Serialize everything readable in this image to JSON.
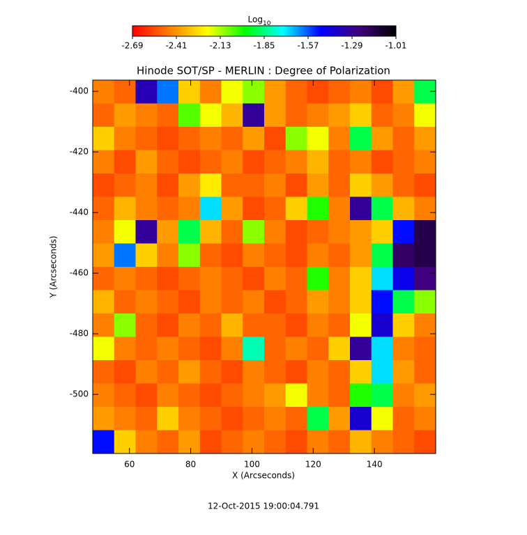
{
  "chart_data": {
    "type": "heatmap",
    "title": "Hinode SOT/SP - MERLIN : Degree of Polarization",
    "x_label": "X (Arcseconds)",
    "y_label": "Y (Arcseconds)",
    "footer": "12-Oct-2015 19:00:04.791",
    "xlim": [
      48,
      160
    ],
    "ylim": [
      -519.5,
      -396.3
    ],
    "xticks": [
      60,
      80,
      100,
      120,
      140
    ],
    "yticks": [
      -400,
      -420,
      -440,
      -460,
      -480,
      -500
    ],
    "colorbar": {
      "label": "Log",
      "label_subscript": "10",
      "lim": [
        -2.69,
        -1.01
      ],
      "ticks": [
        -2.69,
        -2.41,
        -2.13,
        -1.85,
        -1.57,
        -1.29,
        -1.01
      ],
      "colors": [
        "#ff0000",
        "#ff8000",
        "#ffff00",
        "#00ff00",
        "#00ffff",
        "#0000ff",
        "#400080",
        "#000000"
      ]
    },
    "z": [
      [
        -2.45,
        -2.5,
        -1.35,
        -1.6,
        -2.3,
        -2.45,
        -2.2,
        -2.1,
        -2.4,
        -2.5,
        -2.55,
        -2.5,
        -2.45,
        -2.55,
        -2.4,
        -1.9
      ],
      [
        -2.5,
        -2.4,
        -2.45,
        -2.5,
        -2.05,
        -2.2,
        -2.35,
        -1.3,
        -2.4,
        -2.5,
        -2.45,
        -2.4,
        -2.3,
        -2.5,
        -2.45,
        -2.2
      ],
      [
        -2.3,
        -2.45,
        -2.5,
        -2.55,
        -2.5,
        -2.45,
        -2.5,
        -2.4,
        -2.55,
        -2.1,
        -2.2,
        -2.45,
        -1.9,
        -2.4,
        -2.5,
        -2.4
      ],
      [
        -2.45,
        -2.55,
        -2.4,
        -2.5,
        -2.55,
        -2.5,
        -2.45,
        -2.55,
        -2.5,
        -2.45,
        -2.35,
        -2.5,
        -2.45,
        -2.55,
        -2.5,
        -2.45
      ],
      [
        -2.55,
        -2.5,
        -2.45,
        -2.55,
        -2.4,
        -2.25,
        -2.5,
        -2.5,
        -2.45,
        -2.55,
        -2.4,
        -2.5,
        -2.3,
        -2.4,
        -2.5,
        -2.55
      ],
      [
        -2.5,
        -2.35,
        -2.45,
        -2.5,
        -2.45,
        -1.7,
        -2.4,
        -2.55,
        -2.5,
        -2.3,
        -2.0,
        -2.45,
        -1.3,
        -1.9,
        -2.35,
        -2.45
      ],
      [
        -2.45,
        -2.2,
        -1.3,
        -2.4,
        -1.9,
        -2.35,
        -2.5,
        -2.1,
        -2.45,
        -2.55,
        -2.5,
        -2.45,
        -2.4,
        -2.3,
        -1.5,
        -1.15
      ],
      [
        -2.4,
        -1.6,
        -2.3,
        -2.45,
        -2.1,
        -2.5,
        -2.55,
        -2.45,
        -2.5,
        -2.55,
        -2.45,
        -2.5,
        -2.4,
        -1.9,
        -1.2,
        -1.15
      ],
      [
        -2.5,
        -2.45,
        -2.5,
        -2.55,
        -2.5,
        -2.45,
        -2.5,
        -2.55,
        -2.45,
        -2.5,
        -2.0,
        -2.45,
        -2.3,
        -1.7,
        -1.45,
        -1.25
      ],
      [
        -2.35,
        -2.5,
        -2.45,
        -2.5,
        -2.55,
        -2.45,
        -2.5,
        -2.45,
        -2.55,
        -2.5,
        -2.4,
        -2.45,
        -2.3,
        -1.5,
        -1.9,
        -2.1
      ],
      [
        -2.45,
        -2.1,
        -2.5,
        -2.55,
        -2.45,
        -2.5,
        -2.35,
        -2.5,
        -2.5,
        -2.55,
        -2.45,
        -2.5,
        -2.2,
        -1.4,
        -2.3,
        -2.45
      ],
      [
        -2.2,
        -2.45,
        -2.5,
        -2.45,
        -2.5,
        -2.55,
        -2.45,
        -1.8,
        -2.5,
        -2.45,
        -2.5,
        -2.3,
        -1.3,
        -1.7,
        -2.45,
        -2.5
      ],
      [
        -2.5,
        -2.55,
        -2.45,
        -2.5,
        -2.4,
        -2.5,
        -2.55,
        -2.45,
        -2.5,
        -2.55,
        -2.45,
        -2.5,
        -2.3,
        -1.7,
        -2.4,
        -2.5
      ],
      [
        -2.45,
        -2.5,
        -2.55,
        -2.45,
        -2.5,
        -2.55,
        -2.5,
        -2.45,
        -2.4,
        -2.2,
        -2.45,
        -2.5,
        -2.0,
        -1.9,
        -2.45,
        -2.4
      ],
      [
        -2.4,
        -2.45,
        -2.5,
        -2.3,
        -2.45,
        -2.5,
        -2.55,
        -2.5,
        -2.45,
        -2.5,
        -1.9,
        -2.4,
        -1.4,
        -2.2,
        -2.5,
        -2.45
      ],
      [
        -1.5,
        -2.3,
        -2.45,
        -2.5,
        -2.4,
        -2.55,
        -2.5,
        -2.45,
        -2.5,
        -2.55,
        -2.45,
        -2.5,
        -2.35,
        -2.45,
        -2.5,
        -2.55
      ]
    ]
  }
}
